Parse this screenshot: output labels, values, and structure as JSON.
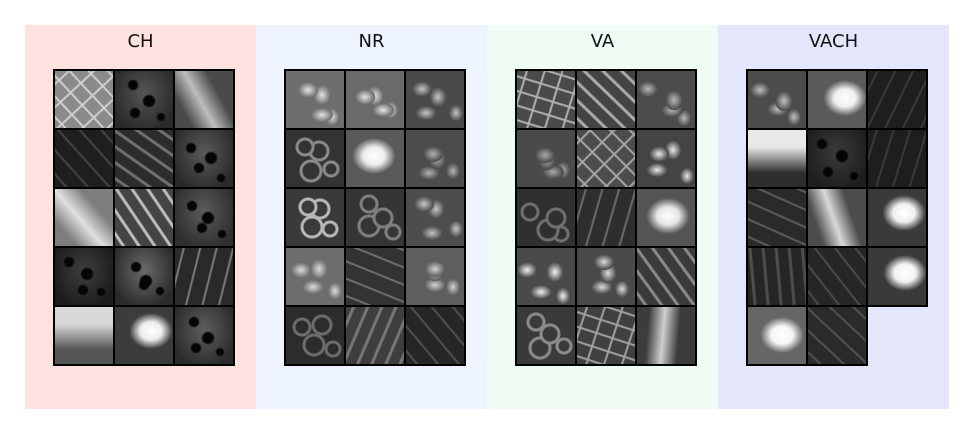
{
  "panels": [
    {
      "title": "CH",
      "bg": "#fde2df",
      "tiles": [
        {
          "tone": "#8a8a8a",
          "hi": "#cfcfcf",
          "pattern": "mosaic"
        },
        {
          "tone": "#2a2a2a",
          "hi": "#555555",
          "pattern": "pits"
        },
        {
          "tone": "#4a4a4a",
          "hi": "#bdbdbd",
          "pattern": "bright-streak"
        },
        {
          "tone": "#1e1e1e",
          "hi": "#444444",
          "pattern": "dark-ridges"
        },
        {
          "tone": "#2c2c2c",
          "hi": "#707070",
          "pattern": "ridges"
        },
        {
          "tone": "#2a2a2a",
          "hi": "#5a5a5a",
          "pattern": "pits"
        },
        {
          "tone": "#7d7d7d",
          "hi": "#e0e0e0",
          "pattern": "bright-streak"
        },
        {
          "tone": "#444444",
          "hi": "#bdbdbd",
          "pattern": "ridges"
        },
        {
          "tone": "#2e2e2e",
          "hi": "#5c5c5c",
          "pattern": "pits"
        },
        {
          "tone": "#1c1c1c",
          "hi": "#3e3e3e",
          "pattern": "pits"
        },
        {
          "tone": "#2a2a2a",
          "hi": "#6a6a6a",
          "pattern": "pits"
        },
        {
          "tone": "#2a2a2a",
          "hi": "#7a7a7a",
          "pattern": "dark-ridges"
        },
        {
          "tone": "#555555",
          "hi": "#d8d8d8",
          "pattern": "bright-top"
        },
        {
          "tone": "#3c3c3c",
          "hi": "#ededed",
          "pattern": "bright-blob"
        },
        {
          "tone": "#2b2b2b",
          "hi": "#5e5e5e",
          "pattern": "pits"
        }
      ]
    },
    {
      "title": "NR",
      "bg": "#eef4ff",
      "tiles": [
        {
          "tone": "#6e6e6e",
          "hi": "#e4e4e4",
          "pattern": "cells"
        },
        {
          "tone": "#6a6a6a",
          "hi": "#e6e6e6",
          "pattern": "cells"
        },
        {
          "tone": "#4a4a4a",
          "hi": "#c4c4c4",
          "pattern": "cells"
        },
        {
          "tone": "#333333",
          "hi": "#8a8a8a",
          "pattern": "rings"
        },
        {
          "tone": "#5a5a5a",
          "hi": "#ededed",
          "pattern": "bright-blob"
        },
        {
          "tone": "#4c4c4c",
          "hi": "#b2b2b2",
          "pattern": "cells"
        },
        {
          "tone": "#3a3a3a",
          "hi": "#b8b8b8",
          "pattern": "rings"
        },
        {
          "tone": "#353535",
          "hi": "#7f7f7f",
          "pattern": "rings"
        },
        {
          "tone": "#4d4d4d",
          "hi": "#c6c6c6",
          "pattern": "cells"
        },
        {
          "tone": "#6d6d6d",
          "hi": "#dcdcdc",
          "pattern": "cells"
        },
        {
          "tone": "#333333",
          "hi": "#6f6f6f",
          "pattern": "dark-ridges"
        },
        {
          "tone": "#5e5e5e",
          "hi": "#d3d3d3",
          "pattern": "cells"
        },
        {
          "tone": "#2c2c2c",
          "hi": "#6c6c6c",
          "pattern": "rings"
        },
        {
          "tone": "#3e3e3e",
          "hi": "#767676",
          "pattern": "ridges"
        },
        {
          "tone": "#262626",
          "hi": "#505050",
          "pattern": "dark-ridges"
        }
      ]
    },
    {
      "title": "VA",
      "bg": "#eefcf3",
      "tiles": [
        {
          "tone": "#4a4a4a",
          "hi": "#b0b0b0",
          "pattern": "mosaic"
        },
        {
          "tone": "#444444",
          "hi": "#aaaaaa",
          "pattern": "ridges"
        },
        {
          "tone": "#4c4c4c",
          "hi": "#b8b8b8",
          "pattern": "cells"
        },
        {
          "tone": "#4a4a4a",
          "hi": "#a9a9a9",
          "pattern": "cells"
        },
        {
          "tone": "#4c4c4c",
          "hi": "#a6a6a6",
          "pattern": "mosaic"
        },
        {
          "tone": "#444444",
          "hi": "#eaeaea",
          "pattern": "cells"
        },
        {
          "tone": "#303030",
          "hi": "#707070",
          "pattern": "rings"
        },
        {
          "tone": "#2e2e2e",
          "hi": "#6a6a6a",
          "pattern": "dark-ridges"
        },
        {
          "tone": "#555555",
          "hi": "#e6e6e6",
          "pattern": "bright-blob"
        },
        {
          "tone": "#4a4a4a",
          "hi": "#f2f2f2",
          "pattern": "cells"
        },
        {
          "tone": "#4a4a4a",
          "hi": "#dcdcdc",
          "pattern": "cells"
        },
        {
          "tone": "#3a3a3a",
          "hi": "#8a8a8a",
          "pattern": "ridges"
        },
        {
          "tone": "#3a3a3a",
          "hi": "#8c8c8c",
          "pattern": "rings"
        },
        {
          "tone": "#404040",
          "hi": "#a0a0a0",
          "pattern": "mosaic"
        },
        {
          "tone": "#3c3c3c",
          "hi": "#cfcfcf",
          "pattern": "bright-streak"
        }
      ]
    },
    {
      "title": "VACH",
      "bg": "#e4e6fb",
      "tiles": [
        {
          "tone": "#4c4c4c",
          "hi": "#c0c0c0",
          "pattern": "cells"
        },
        {
          "tone": "#5a5a5a",
          "hi": "#efefef",
          "pattern": "bright-blob"
        },
        {
          "tone": "#1e1e1e",
          "hi": "#3a3a3a",
          "pattern": "dark-ridges"
        },
        {
          "tone": "#2e2e2e",
          "hi": "#e8e8e8",
          "pattern": "bright-top"
        },
        {
          "tone": "#1e1e1e",
          "hi": "#3a3a3a",
          "pattern": "pits"
        },
        {
          "tone": "#1e1e1e",
          "hi": "#3a3a3a",
          "pattern": "dark-ridges"
        },
        {
          "tone": "#2a2a2a",
          "hi": "#5c5c5c",
          "pattern": "dark-ridges"
        },
        {
          "tone": "#4c4c4c",
          "hi": "#d8d8d8",
          "pattern": "bright-streak"
        },
        {
          "tone": "#3a3a3a",
          "hi": "#f0f0f0",
          "pattern": "bright-blob"
        },
        {
          "tone": "#262626",
          "hi": "#4e4e4e",
          "pattern": "ridges"
        },
        {
          "tone": "#262626",
          "hi": "#4a4a4a",
          "pattern": "dark-ridges"
        },
        {
          "tone": "#3a3a3a",
          "hi": "#f2f2f2",
          "pattern": "bright-blob"
        },
        {
          "tone": "#666666",
          "hi": "#f5f5f5",
          "pattern": "bright-blob"
        },
        {
          "tone": "#2a2a2a",
          "hi": "#525252",
          "pattern": "dark-ridges"
        },
        {
          "blank": true
        }
      ]
    }
  ]
}
